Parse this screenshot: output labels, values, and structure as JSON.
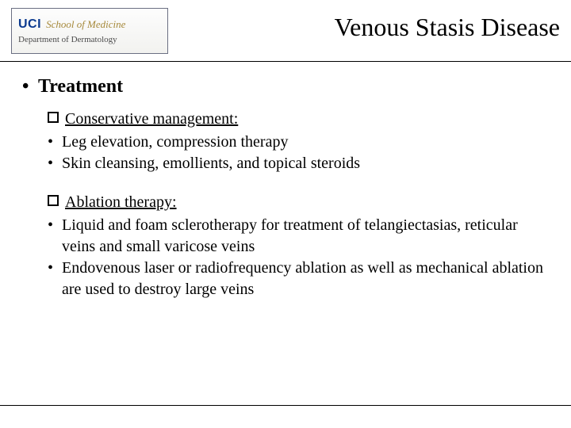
{
  "logo": {
    "uci": "UCI",
    "school": "School of Medicine",
    "department": "Department of Dermatology"
  },
  "title": "Venous Stasis Disease",
  "heading": "Treatment",
  "sections": [
    {
      "label": "Conservative management:",
      "items": [
        "Leg elevation, compression therapy",
        "Skin cleansing, emollients, and topical steroids"
      ]
    },
    {
      "label": "Ablation therapy:",
      "items": [
        " Liquid and foam sclerotherapy for treatment of telangiectasias, reticular veins and small varicose veins",
        " Endovenous laser or radiofrequency ablation as well as mechanical ablation are used to destroy large veins"
      ]
    }
  ],
  "style": {
    "title_fontsize": 32,
    "heading_fontsize": 24,
    "body_fontsize": 20,
    "text_color": "#000000",
    "background_color": "#ffffff",
    "logo_uci_color": "#0b3a8f",
    "logo_school_color": "#a6893a",
    "logo_dept_color": "#4a4a4a",
    "rule_color": "#000000",
    "logo_border_color": "#6b6f82"
  }
}
